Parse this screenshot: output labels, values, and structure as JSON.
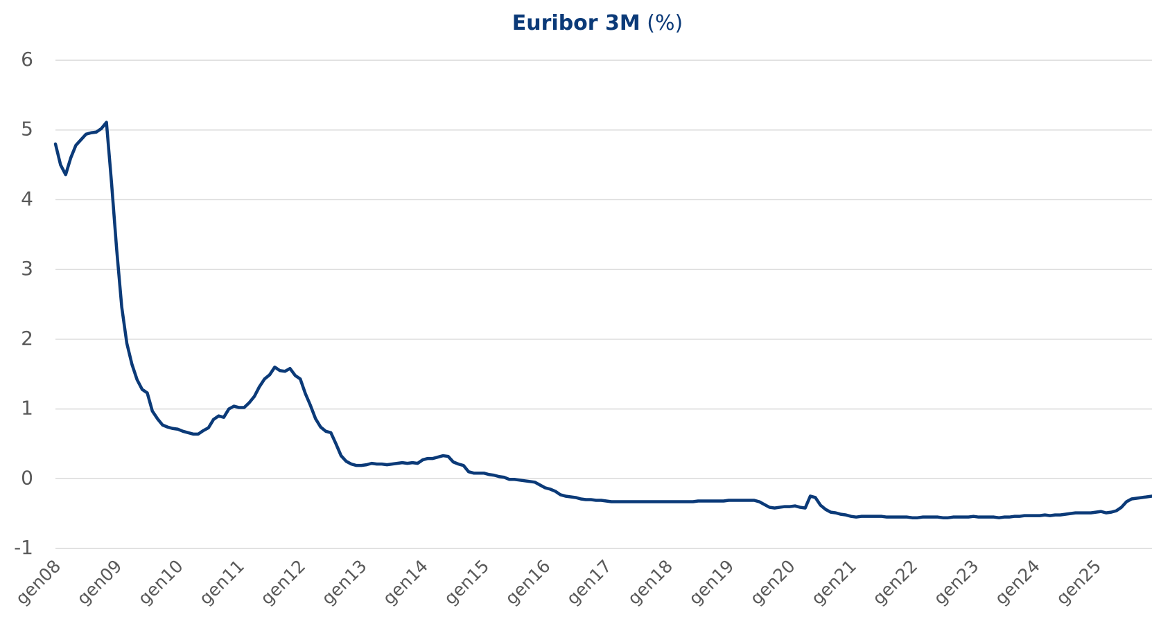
{
  "chart_data": {
    "type": "line",
    "title": "Euribor 3M",
    "title_unit": "(%)",
    "categories": [
      "gen08",
      null,
      null,
      null,
      null,
      null,
      null,
      null,
      null,
      null,
      null,
      null,
      "gen09",
      null,
      null,
      null,
      null,
      null,
      null,
      null,
      null,
      null,
      null,
      null,
      "gen10",
      null,
      null,
      null,
      null,
      null,
      null,
      null,
      null,
      null,
      null,
      null,
      "gen11",
      null,
      null,
      null,
      null,
      null,
      null,
      null,
      null,
      null,
      null,
      null,
      "gen12",
      null,
      null,
      null,
      null,
      null,
      null,
      null,
      null,
      null,
      null,
      null,
      "gen13",
      null,
      null,
      null,
      null,
      null,
      null,
      null,
      null,
      null,
      null,
      null,
      "gen14",
      null,
      null,
      null,
      null,
      null,
      null,
      null,
      null,
      null,
      null,
      null,
      "gen15",
      null,
      null,
      null,
      null,
      null,
      null,
      null,
      null,
      null,
      null,
      null,
      "gen16",
      null,
      null,
      null,
      null,
      null,
      null,
      null,
      null,
      null,
      null,
      null,
      "gen17",
      null,
      null,
      null,
      null,
      null,
      null,
      null,
      null,
      null,
      null,
      null,
      "gen18",
      null,
      null,
      null,
      null,
      null,
      null,
      null,
      null,
      null,
      null,
      null,
      "gen19",
      null,
      null,
      null,
      null,
      null,
      null,
      null,
      null,
      null,
      null,
      null,
      "gen20",
      null,
      null,
      null,
      null,
      null,
      null,
      null,
      null,
      null,
      null,
      null,
      "gen21",
      null,
      null,
      null,
      null,
      null,
      null,
      null,
      null,
      null,
      null,
      null,
      "gen22",
      null,
      null,
      null,
      null,
      null,
      null,
      null,
      null,
      null,
      null,
      null,
      "gen23",
      null,
      null,
      null,
      null,
      null,
      null,
      null,
      null,
      null,
      null,
      null,
      "gen24",
      null,
      null,
      null,
      null,
      null,
      null,
      null,
      null,
      null,
      null,
      null,
      "gen25",
      null,
      null,
      null,
      null,
      null,
      null,
      null,
      null,
      null,
      null,
      null
    ],
    "values": [
      4.8,
      4.5,
      4.36,
      4.6,
      4.78,
      4.86,
      4.94,
      4.96,
      4.97,
      5.02,
      5.11,
      4.24,
      3.29,
      2.46,
      1.94,
      1.64,
      1.42,
      1.28,
      1.23,
      0.97,
      0.86,
      0.77,
      0.74,
      0.72,
      0.71,
      0.68,
      0.66,
      0.64,
      0.64,
      0.69,
      0.73,
      0.85,
      0.9,
      0.88,
      1.0,
      1.04,
      1.02,
      1.02,
      1.09,
      1.18,
      1.32,
      1.43,
      1.49,
      1.6,
      1.55,
      1.54,
      1.58,
      1.48,
      1.43,
      1.22,
      1.05,
      0.86,
      0.74,
      0.68,
      0.66,
      0.5,
      0.33,
      0.25,
      0.21,
      0.19,
      0.19,
      0.2,
      0.22,
      0.21,
      0.21,
      0.2,
      0.21,
      0.22,
      0.23,
      0.22,
      0.23,
      0.22,
      0.27,
      0.29,
      0.29,
      0.31,
      0.33,
      0.32,
      0.24,
      0.21,
      0.19,
      0.1,
      0.08,
      0.08,
      0.08,
      0.06,
      0.05,
      0.03,
      0.02,
      -0.01,
      -0.01,
      -0.02,
      -0.03,
      -0.04,
      -0.05,
      -0.09,
      -0.13,
      -0.15,
      -0.18,
      -0.23,
      -0.25,
      -0.26,
      -0.27,
      -0.29,
      -0.3,
      -0.3,
      -0.31,
      -0.31,
      -0.32,
      -0.33,
      -0.33,
      -0.33,
      -0.33,
      -0.33,
      -0.33,
      -0.33,
      -0.33,
      -0.33,
      -0.33,
      -0.33,
      -0.33,
      -0.33,
      -0.33,
      -0.33,
      -0.33,
      -0.33,
      -0.32,
      -0.32,
      -0.32,
      -0.32,
      -0.32,
      -0.32,
      -0.31,
      -0.31,
      -0.31,
      -0.31,
      -0.31,
      -0.31,
      -0.33,
      -0.37,
      -0.41,
      -0.42,
      -0.41,
      -0.4,
      -0.4,
      -0.39,
      -0.41,
      -0.42,
      -0.25,
      -0.27,
      -0.38,
      -0.44,
      -0.48,
      -0.49,
      -0.51,
      -0.52,
      -0.54,
      -0.55,
      -0.54,
      -0.54,
      -0.54,
      -0.54,
      -0.54,
      -0.55,
      -0.55,
      -0.55,
      -0.55,
      -0.55,
      -0.56,
      -0.56,
      -0.55,
      -0.55,
      -0.55,
      -0.55,
      -0.56,
      -0.56,
      -0.55,
      -0.55,
      -0.55,
      -0.55,
      -0.54,
      -0.55,
      -0.55,
      -0.55,
      -0.55,
      -0.56,
      -0.55,
      -0.55,
      -0.54,
      -0.54,
      -0.53,
      -0.53,
      -0.53,
      -0.53,
      -0.52,
      -0.53,
      -0.52,
      -0.52,
      -0.51,
      -0.5,
      -0.49,
      -0.49,
      -0.49,
      -0.49,
      -0.48,
      -0.47,
      -0.49,
      -0.48,
      -0.46,
      -0.41,
      -0.33,
      -0.29,
      -0.28,
      -0.27,
      -0.26,
      -0.25
    ],
    "color": "#0b3a78",
    "ylim": [
      -1,
      6
    ],
    "yticks": [
      -1,
      0,
      1,
      2,
      3,
      4,
      5,
      6
    ],
    "grid": true
  }
}
